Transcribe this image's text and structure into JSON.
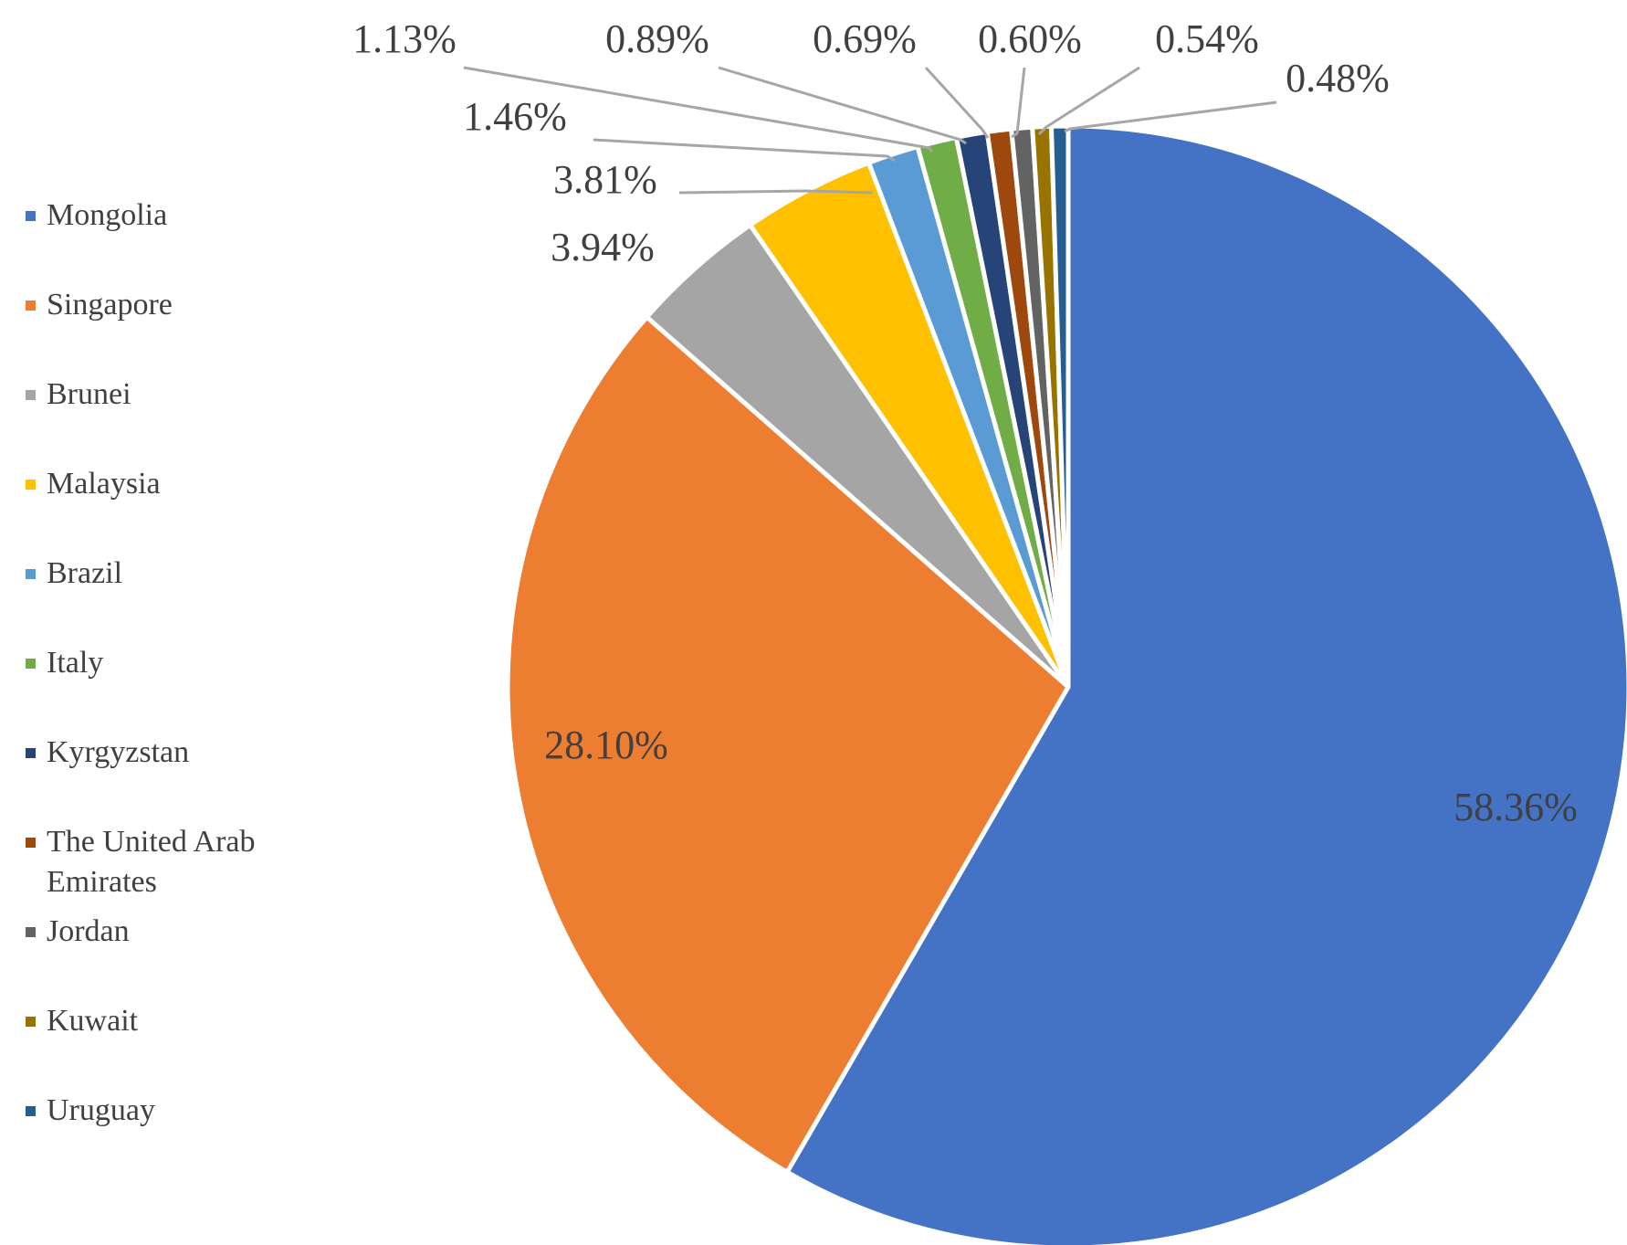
{
  "chart_data": {
    "type": "pie",
    "title": "",
    "slices": [
      {
        "label": "Mongolia",
        "value": 58.36,
        "display": "58.36%",
        "color": "#4472C4"
      },
      {
        "label": "Singapore",
        "value": 28.1,
        "display": "28.10%",
        "color": "#ED7D31"
      },
      {
        "label": "Brunei",
        "value": 3.94,
        "display": "3.94%",
        "color": "#A5A5A5"
      },
      {
        "label": "Malaysia",
        "value": 3.81,
        "display": "3.81%",
        "color": "#FFC000"
      },
      {
        "label": "Brazil",
        "value": 1.46,
        "display": "1.46%",
        "color": "#5B9BD5"
      },
      {
        "label": "Italy",
        "value": 1.13,
        "display": "1.13%",
        "color": "#70AD47"
      },
      {
        "label": "Kyrgyzstan",
        "value": 0.89,
        "display": "0.89%",
        "color": "#264478"
      },
      {
        "label": "The United Arab Emirates",
        "value": 0.69,
        "display": "0.69%",
        "color": "#9E480E"
      },
      {
        "label": "Jordan",
        "value": 0.6,
        "display": "0.60%",
        "color": "#636363"
      },
      {
        "label": "Kuwait",
        "value": 0.54,
        "display": "0.54%",
        "color": "#997300"
      },
      {
        "label": "Uruguay",
        "value": 0.48,
        "display": "0.48%",
        "color": "#255E91"
      }
    ],
    "legend_position": "left",
    "start_angle": "top",
    "direction": "clockwise"
  }
}
